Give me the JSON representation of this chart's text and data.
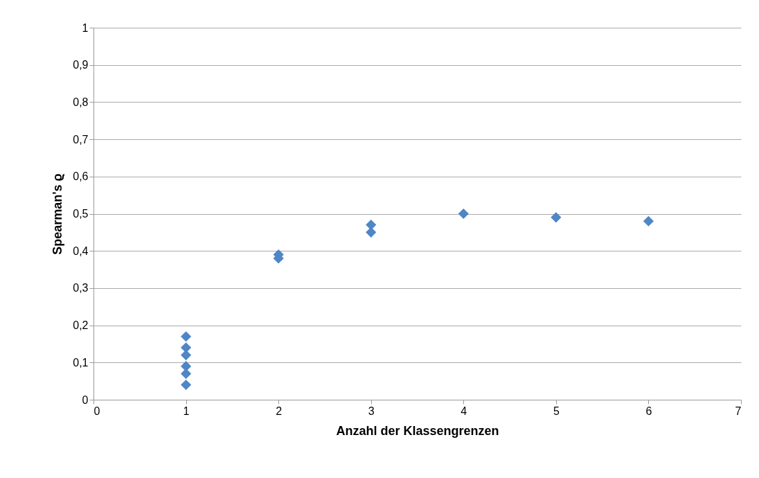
{
  "chart_data": {
    "type": "scatter",
    "xlabel": "Anzahl der Klassengrenzen",
    "ylabel": "Spearman's ϱ",
    "x": [
      1,
      1,
      1,
      1,
      1,
      1,
      2,
      2,
      3,
      3,
      4,
      5,
      6
    ],
    "series": [
      {
        "color": "#4f86c6",
        "values": [
          0.17,
          0.14,
          0.12,
          0.09,
          0.07,
          0.04,
          0.39,
          0.38,
          0.47,
          0.45,
          0.5,
          0.49,
          0.48
        ]
      }
    ],
    "xlim": [
      0,
      7
    ],
    "xticks": [
      0,
      1,
      2,
      3,
      4,
      5,
      6,
      7
    ],
    "ylim": [
      0,
      1
    ],
    "yticks": [
      0,
      {
        "value": 0.1,
        "label": "0,1"
      },
      {
        "value": 0.2,
        "label": "0,2"
      },
      {
        "value": 0.3,
        "label": "0,3"
      },
      {
        "value": 0.4,
        "label": "0,4"
      },
      {
        "value": 0.5,
        "label": "0,5"
      },
      {
        "value": 0.6,
        "label": "0,6"
      },
      {
        "value": 0.7,
        "label": "0,7"
      },
      {
        "value": 0.8,
        "label": "0,8"
      },
      {
        "value": 0.9,
        "label": "0,9"
      },
      1
    ],
    "grid": "y",
    "marker": "diamond"
  }
}
